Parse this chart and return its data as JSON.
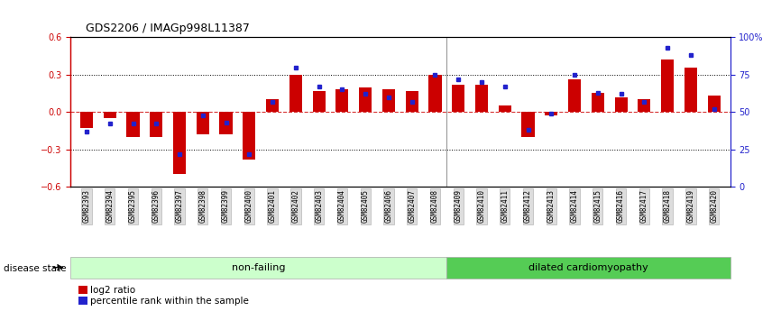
{
  "title": "GDS2206 / IMAGp998L11387",
  "categories": [
    "GSM82393",
    "GSM82394",
    "GSM82395",
    "GSM82396",
    "GSM82397",
    "GSM82398",
    "GSM82399",
    "GSM82400",
    "GSM82401",
    "GSM82402",
    "GSM82403",
    "GSM82404",
    "GSM82405",
    "GSM82406",
    "GSM82407",
    "GSM82408",
    "GSM82409",
    "GSM82410",
    "GSM82411",
    "GSM82412",
    "GSM82413",
    "GSM82414",
    "GSM82415",
    "GSM82416",
    "GSM82417",
    "GSM82418",
    "GSM82419",
    "GSM82420"
  ],
  "log2_ratio": [
    -0.13,
    -0.05,
    -0.2,
    -0.2,
    -0.5,
    -0.18,
    -0.18,
    -0.38,
    0.1,
    0.3,
    0.17,
    0.18,
    0.2,
    0.18,
    0.17,
    0.3,
    0.22,
    0.22,
    0.05,
    -0.2,
    -0.03,
    0.26,
    0.15,
    0.12,
    0.1,
    0.42,
    0.36,
    0.13
  ],
  "percentile": [
    37,
    42,
    42,
    42,
    22,
    48,
    43,
    22,
    57,
    80,
    67,
    65,
    62,
    60,
    57,
    75,
    72,
    70,
    67,
    38,
    49,
    75,
    63,
    62,
    57,
    93,
    88,
    52
  ],
  "non_failing_count": 16,
  "ylim": [
    -0.6,
    0.6
  ],
  "bar_color": "#cc0000",
  "dot_color": "#2222cc",
  "zero_line_color": "#cc0000",
  "bg_color": "#ffffff",
  "left_axis_color": "#cc0000",
  "right_axis_color": "#2222cc",
  "non_failing_bg": "#ccffcc",
  "dilated_bg": "#55cc55",
  "non_failing_label": "non-failing",
  "dilated_label": "dilated cardiomyopathy",
  "disease_state_label": "disease state",
  "legend_log2": "log2 ratio",
  "legend_pct": "percentile rank within the sample",
  "right_yticks": [
    0,
    25,
    50,
    75,
    100
  ],
  "right_ytick_labels": [
    "0",
    "25",
    "50",
    "75",
    "100%"
  ],
  "left_yticks": [
    -0.6,
    -0.3,
    0.0,
    0.3,
    0.6
  ],
  "dotted_lines": [
    -0.3,
    0.3
  ],
  "bar_width": 0.55
}
